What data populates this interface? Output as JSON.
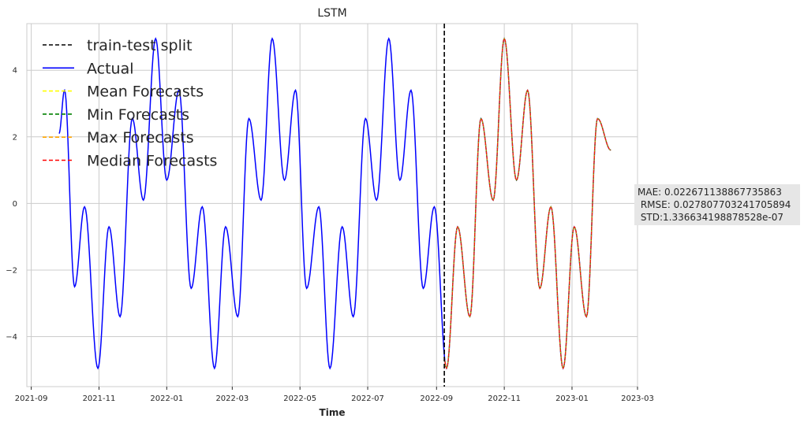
{
  "chart_data": {
    "type": "line",
    "title": "LSTM",
    "xlabel": "Time",
    "ylabel": "",
    "xlim": [
      "2021-08-28",
      "2023-03-01"
    ],
    "ylim": [
      -5.5,
      5.4
    ],
    "grid": true,
    "x_ticks": [
      "2021-09",
      "2021-11",
      "2022-01",
      "2022-03",
      "2022-05",
      "2022-07",
      "2022-09",
      "2022-11",
      "2023-01",
      "2023-03"
    ],
    "y_ticks": [
      -4,
      -2,
      0,
      2,
      4
    ],
    "legend_position": "upper-left",
    "legend": [
      {
        "label": "train-test split",
        "color": "#000000",
        "style": "dashed"
      },
      {
        "label": "Actual",
        "color": "#0000ff",
        "style": "solid"
      },
      {
        "label": "Mean Forecasts",
        "color": "#ffff00",
        "style": "dashed"
      },
      {
        "label": "Min Forecasts",
        "color": "#008000",
        "style": "dashed"
      },
      {
        "label": "Max Forecasts",
        "color": "#ffa500",
        "style": "dashed"
      },
      {
        "label": "Median Forecasts",
        "color": "#ff0000",
        "style": "dashed"
      }
    ],
    "split_date": "2022-09-08",
    "series": [
      {
        "name": "Actual",
        "color": "#0000ff",
        "style": "solid",
        "start": "2021-09-26",
        "end": "2023-02-05",
        "points": [
          [
            "2021-09-26",
            2.1
          ],
          [
            "2021-10-01",
            3.4
          ],
          [
            "2021-10-10",
            -2.5
          ],
          [
            "2021-10-19",
            -0.1
          ],
          [
            "2021-10-31",
            -4.95
          ],
          [
            "2021-11-10",
            -0.7
          ],
          [
            "2021-11-20",
            -3.4
          ],
          [
            "2021-12-01",
            2.55
          ],
          [
            "2021-12-11",
            0.1
          ],
          [
            "2021-12-22",
            4.95
          ],
          [
            "2022-01-01",
            0.7
          ],
          [
            "2022-01-12",
            3.4
          ],
          [
            "2022-01-23",
            -2.55
          ],
          [
            "2022-02-02",
            -0.1
          ],
          [
            "2022-02-13",
            -4.95
          ],
          [
            "2022-02-23",
            -0.7
          ],
          [
            "2022-03-06",
            -3.4
          ],
          [
            "2022-03-16",
            2.55
          ],
          [
            "2022-03-27",
            0.1
          ],
          [
            "2022-04-06",
            4.95
          ],
          [
            "2022-04-17",
            0.7
          ],
          [
            "2022-04-27",
            3.4
          ],
          [
            "2022-05-07",
            -2.55
          ],
          [
            "2022-05-18",
            -0.1
          ],
          [
            "2022-05-28",
            -4.95
          ],
          [
            "2022-06-08",
            -0.7
          ],
          [
            "2022-06-18",
            -3.4
          ],
          [
            "2022-06-29",
            2.55
          ],
          [
            "2022-07-09",
            0.1
          ],
          [
            "2022-07-20",
            4.95
          ],
          [
            "2022-07-30",
            0.7
          ],
          [
            "2022-08-09",
            3.4
          ],
          [
            "2022-08-20",
            -2.55
          ],
          [
            "2022-08-30",
            -0.1
          ],
          [
            "2022-09-10",
            -4.95
          ],
          [
            "2022-09-20",
            -0.7
          ],
          [
            "2022-10-01",
            -3.4
          ],
          [
            "2022-10-11",
            2.55
          ],
          [
            "2022-10-22",
            0.1
          ],
          [
            "2022-11-01",
            4.95
          ],
          [
            "2022-11-12",
            0.7
          ],
          [
            "2022-11-22",
            3.4
          ],
          [
            "2022-12-03",
            -2.55
          ],
          [
            "2022-12-13",
            -0.1
          ],
          [
            "2022-12-24",
            -4.95
          ],
          [
            "2023-01-03",
            -0.7
          ],
          [
            "2023-01-14",
            -3.4
          ],
          [
            "2023-01-24",
            2.55
          ],
          [
            "2023-02-05",
            1.6
          ]
        ]
      },
      {
        "name": "Mean Forecasts",
        "color": "#ffff00",
        "style": "dashed",
        "start": "2022-09-08",
        "end": "2023-02-05"
      },
      {
        "name": "Min Forecasts",
        "color": "#008000",
        "style": "dashed",
        "start": "2022-09-08",
        "end": "2023-02-05"
      },
      {
        "name": "Max Forecasts",
        "color": "#ffa500",
        "style": "dashed",
        "start": "2022-09-08",
        "end": "2023-02-05"
      },
      {
        "name": "Median Forecasts",
        "color": "#ff0000",
        "style": "dashed",
        "start": "2022-09-08",
        "end": "2023-02-05"
      }
    ],
    "annotation": {
      "lines": [
        "MAE: 0.022671138867735863",
        " RMSE: 0.027807703241705894",
        " STD:1.336634198878528e-07"
      ],
      "box_color": "#e6e6e6"
    }
  }
}
